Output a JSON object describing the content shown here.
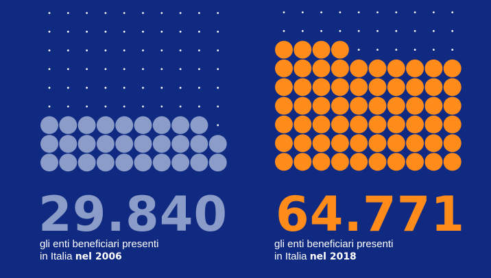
{
  "chart_data": [
    {
      "type": "unit-grid",
      "value": "29.840",
      "caption_line1": "gli enti beneficiari presenti",
      "caption_line2_prefix": "in Italia",
      "caption_line2_bold": "nel 2006",
      "filled_units": 29,
      "total_units": 90,
      "color": "#8b9cc9"
    },
    {
      "type": "unit-grid",
      "value": "64.771",
      "caption_line1": "gli enti beneficiari presenti",
      "caption_line2_prefix": "in Italia",
      "caption_line2_bold": "nel 2018",
      "filled_units": 64,
      "total_units": 90,
      "color": "#ff8c1a"
    }
  ],
  "colors": {
    "background": "#0f2a80",
    "dot": "#ffffff"
  }
}
